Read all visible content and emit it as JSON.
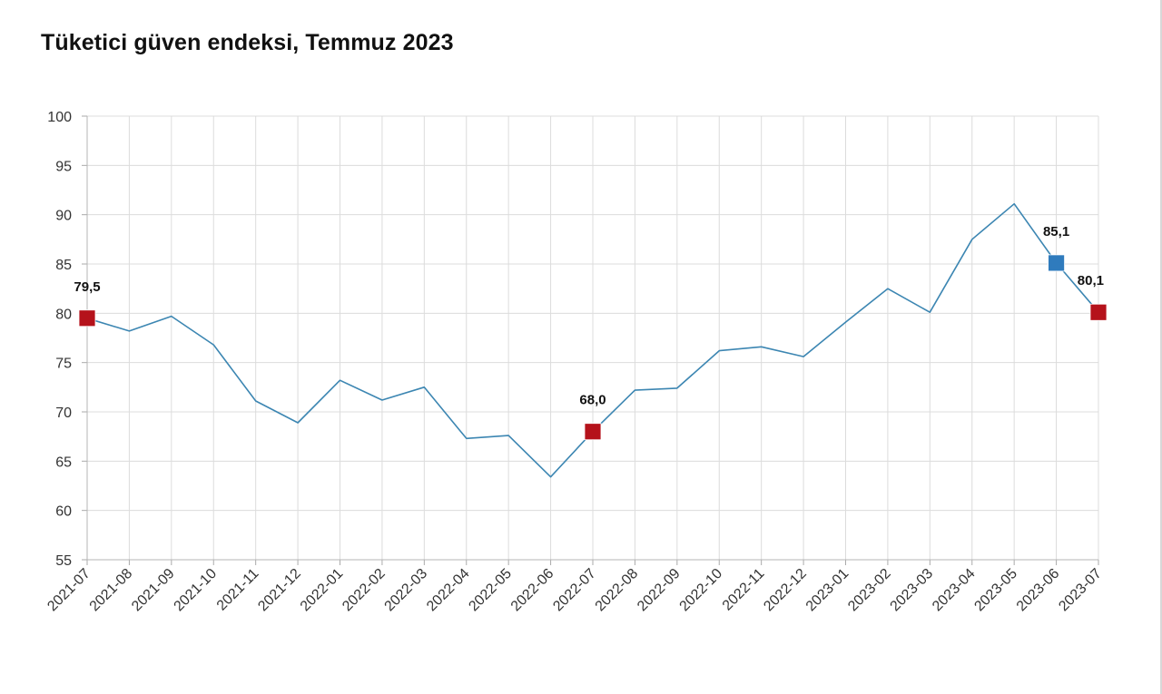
{
  "chart_data": {
    "type": "line",
    "title": "Tüketici güven endeksi, Temmuz 2023",
    "xlabel": "",
    "ylabel": "",
    "ylim": [
      55,
      100
    ],
    "yticks": [
      55,
      60,
      65,
      70,
      75,
      80,
      85,
      90,
      95,
      100
    ],
    "grid": true,
    "legend": "none",
    "categories": [
      "2021-07",
      "2021-08",
      "2021-09",
      "2021-10",
      "2021-11",
      "2021-12",
      "2022-01",
      "2022-02",
      "2022-03",
      "2022-04",
      "2022-05",
      "2022-06",
      "2022-07",
      "2022-08",
      "2022-09",
      "2022-10",
      "2022-11",
      "2022-12",
      "2023-01",
      "2023-02",
      "2023-03",
      "2023-04",
      "2023-05",
      "2023-06",
      "2023-07"
    ],
    "series": [
      {
        "values": [
          79.5,
          78.2,
          79.7,
          76.8,
          71.1,
          68.9,
          73.2,
          71.2,
          72.5,
          67.3,
          67.6,
          63.4,
          68.0,
          72.2,
          72.4,
          76.2,
          76.6,
          75.6,
          79.1,
          82.5,
          80.1,
          87.5,
          91.1,
          85.1,
          80.1
        ],
        "color": "#3c86b2"
      }
    ],
    "markers": [
      {
        "category": "2021-07",
        "value": 79.5,
        "label": "79,5",
        "color": "#b5121b"
      },
      {
        "category": "2022-07",
        "value": 68.0,
        "label": "68,0",
        "color": "#b5121b"
      },
      {
        "category": "2023-06",
        "value": 85.1,
        "label": "85,1",
        "color": "#2f7bbd"
      },
      {
        "category": "2023-07",
        "value": 80.1,
        "label": "80,1",
        "color": "#b5121b"
      }
    ]
  }
}
